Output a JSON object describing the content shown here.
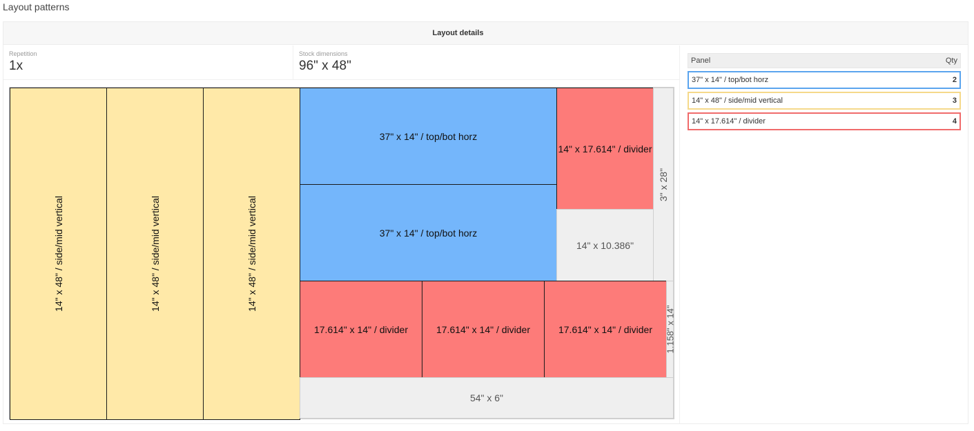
{
  "page": {
    "title": "Layout patterns"
  },
  "card": {
    "header": "Layout details"
  },
  "stats": {
    "repetition": {
      "label": "Repetition",
      "value": "1x"
    },
    "stock": {
      "label": "Stock dimensions",
      "value": "96\" x 48\""
    }
  },
  "colors": {
    "top_bot_horz": "#74b6fb",
    "side_mid_vertical": "#ffe9a8",
    "divider": "#fd7b79",
    "waste": "#efefef",
    "legend_blue_border": "#5aa4ee",
    "legend_yellow_border": "#f5d98a",
    "legend_red_border": "#f06a6a"
  },
  "layout": {
    "pieces": {
      "v1": "14\" x 48\" / side/mid vertical",
      "v2": "14\" x 48\" / side/mid vertical",
      "v3": "14\" x 48\" / side/mid vertical",
      "h1": "37\" x 14\" / top/bot horz",
      "h2": "37\" x 14\" / top/bot horz",
      "d1": "14\" x 17.614\" / divider",
      "d2": "17.614\" x 14\" / divider",
      "d3": "17.614\" x 14\" / divider",
      "d4": "17.614\" x 14\" / divider"
    },
    "waste": {
      "w1": "3\" x 28\"",
      "w2": "14\" x 10.386\"",
      "w3": "1.158\" x 14\"",
      "w4": "54\" x 6\""
    }
  },
  "panel_table": {
    "headers": {
      "panel": "Panel",
      "qty": "Qty"
    },
    "rows": [
      {
        "name": "37\" x 14\" / top/bot horz",
        "qty": "2"
      },
      {
        "name": "14\" x 48\" / side/mid vertical",
        "qty": "3"
      },
      {
        "name": "14\" x 17.614\" / divider",
        "qty": "4"
      }
    ]
  }
}
